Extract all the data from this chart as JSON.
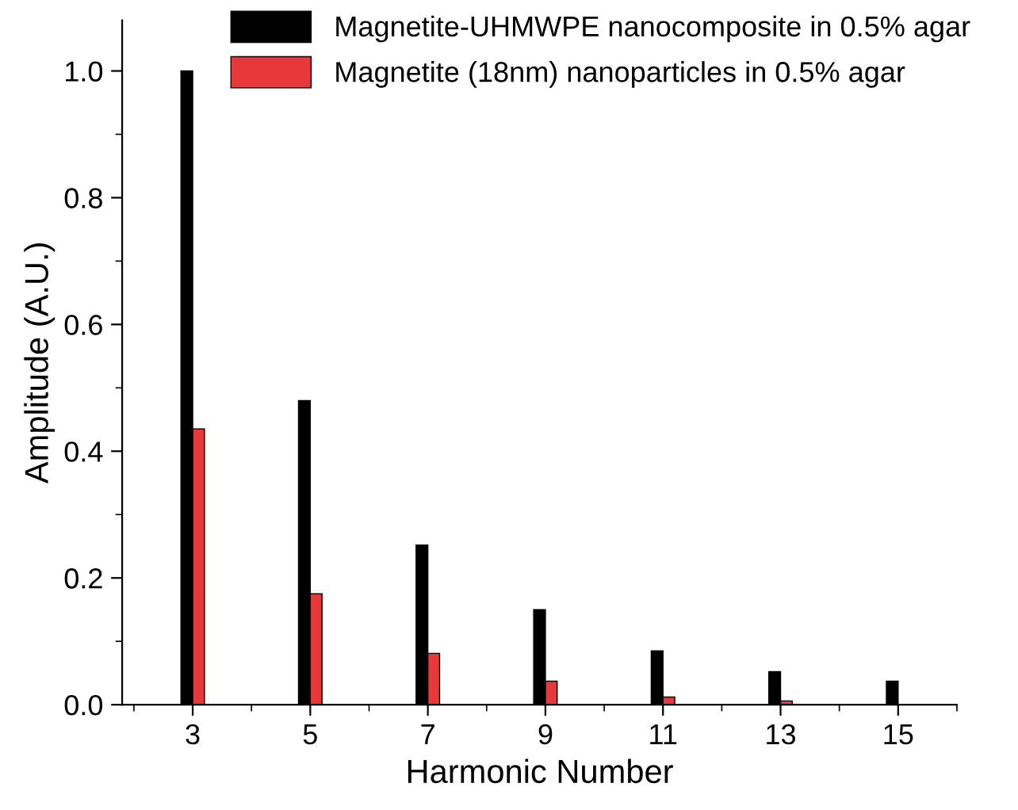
{
  "chart_data": {
    "type": "bar",
    "xlabel": "Harmonic Number",
    "ylabel": "Amplitude (A.U.)",
    "x": [
      3,
      5,
      7,
      9,
      11,
      13,
      15
    ],
    "series": [
      {
        "name": "Magnetite-UHMWPE nanocomposite in 0.5% agar",
        "color": "#000000",
        "values": [
          1.0,
          0.48,
          0.252,
          0.15,
          0.085,
          0.052,
          0.037
        ]
      },
      {
        "name": "Magnetite (18nm) nanoparticles in 0.5% agar",
        "color": "#e8393a",
        "values": [
          0.435,
          0.175,
          0.081,
          0.037,
          0.012,
          0.006,
          null
        ]
      }
    ],
    "xlim": [
      1.8,
      16
    ],
    "xticks": [
      3,
      5,
      7,
      9,
      11,
      13,
      15
    ],
    "ylim": [
      0,
      1.08
    ],
    "yticks": [
      {
        "value": 0,
        "label": "0.0"
      },
      {
        "value": 0.2,
        "label": "0.2"
      },
      {
        "value": 0.4,
        "label": "0.4"
      },
      {
        "value": 0.6,
        "label": "0.6"
      },
      {
        "value": 0.8,
        "label": "0.8"
      },
      {
        "value": 1.0,
        "label": "1.0"
      }
    ],
    "legend": "top right",
    "grid": false
  }
}
